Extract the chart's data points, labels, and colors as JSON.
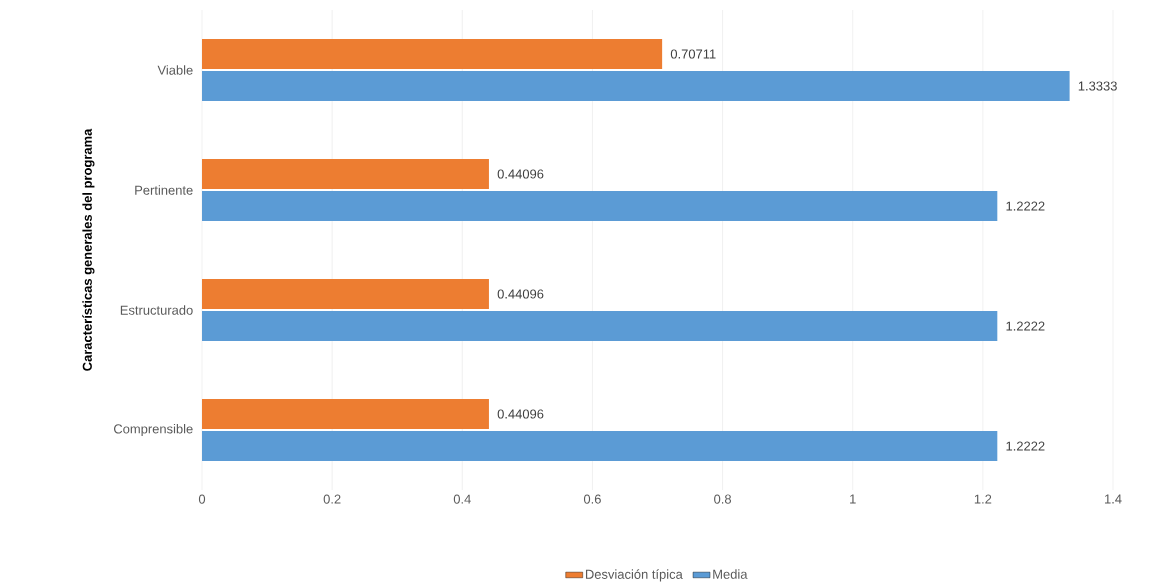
{
  "chart_data": {
    "type": "bar",
    "orientation": "horizontal",
    "ylabel": "Características generales del programa",
    "categories": [
      "Viable",
      "Pertinente",
      "Estructurado",
      "Comprensible"
    ],
    "series": [
      {
        "name": "Desviación típica",
        "color": "#ed7d31",
        "values": [
          0.70711,
          0.44096,
          0.44096,
          0.44096
        ]
      },
      {
        "name": "Media",
        "color": "#5b9bd5",
        "values": [
          1.3333,
          1.2222,
          1.2222,
          1.2222
        ]
      }
    ],
    "xlim": [
      0,
      1.4
    ],
    "xticks": [
      0,
      0.2,
      0.4,
      0.6,
      0.8,
      1,
      1.2,
      1.4
    ],
    "grid": "x",
    "legend": "bottom",
    "data_labels": true
  }
}
